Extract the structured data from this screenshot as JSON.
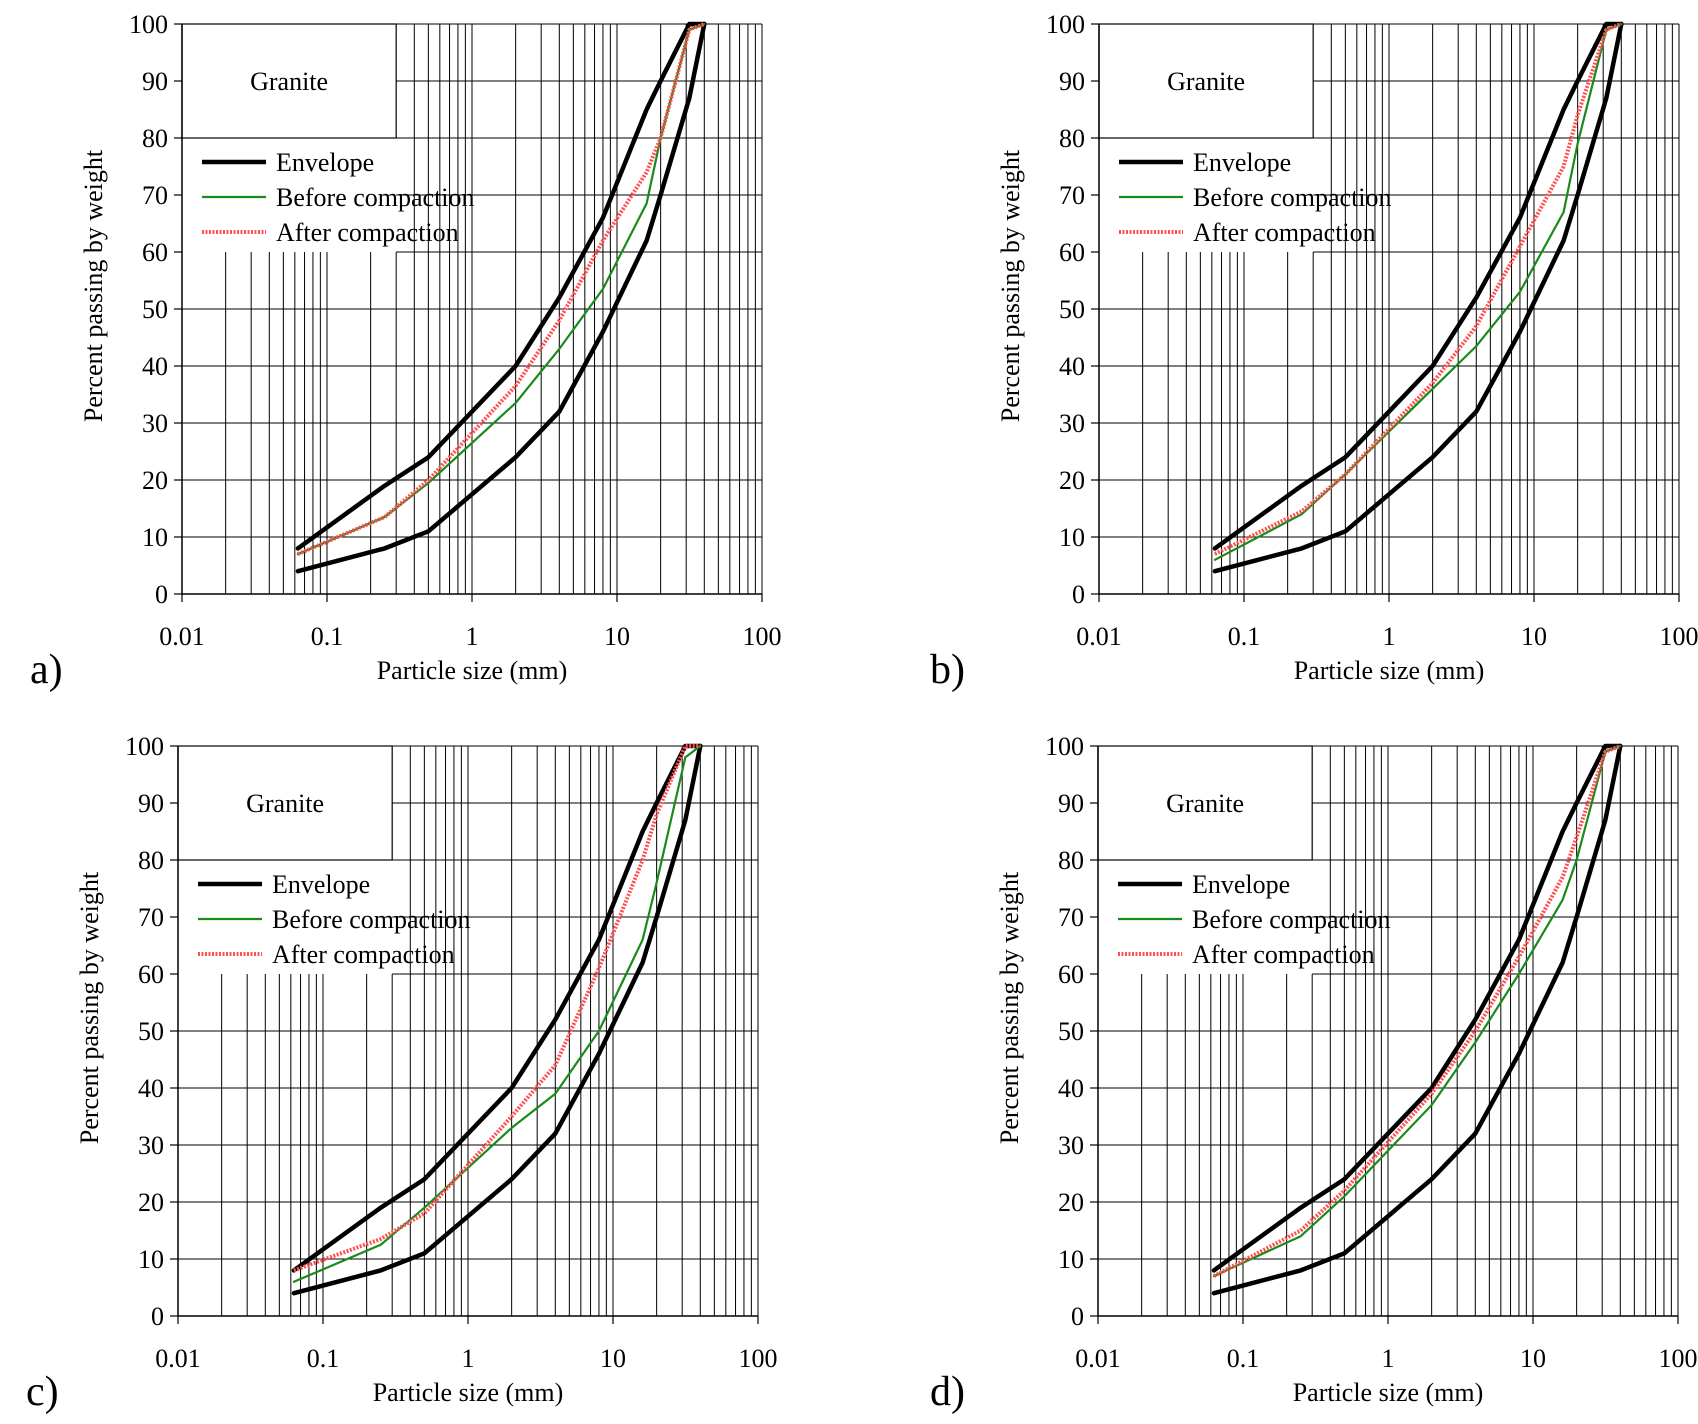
{
  "chart_data": [
    {
      "type": "line",
      "panel_label": "a)",
      "title": "Granite",
      "xlabel": "Particle size (mm)",
      "ylabel": "Percent passing by weight",
      "xscale": "log",
      "xlim": [
        0.01,
        100
      ],
      "ylim": [
        0,
        100
      ],
      "x_ticks": [
        "0.01",
        "0.1",
        "1",
        "10",
        "100"
      ],
      "y_ticks": [
        "0",
        "10",
        "20",
        "30",
        "40",
        "50",
        "60",
        "70",
        "80",
        "90",
        "100"
      ],
      "grid": true,
      "legend_position": "upper-left",
      "legend": [
        "Envelope",
        "Before compaction",
        "After compaction"
      ],
      "series": [
        {
          "name": "Envelope",
          "style": "upper",
          "color": "#000000",
          "x": [
            0.063,
            0.25,
            0.5,
            2,
            4,
            8,
            16,
            20,
            31.5,
            40
          ],
          "y": [
            8,
            19,
            24,
            40,
            52,
            66,
            85,
            90,
            100,
            100
          ]
        },
        {
          "name": "Envelope",
          "style": "lower",
          "color": "#000000",
          "x": [
            0.063,
            0.25,
            0.5,
            2,
            4,
            8,
            16,
            20,
            31.5,
            40
          ],
          "y": [
            4,
            8,
            11,
            24,
            32,
            46,
            62,
            70,
            87,
            100
          ]
        },
        {
          "name": "Before compaction",
          "color": "#1a8a1a",
          "x": [
            0.063,
            0.25,
            0.5,
            2,
            4,
            8,
            16,
            20,
            31.5,
            40
          ],
          "y": [
            7,
            13.5,
            19.5,
            33.5,
            43,
            53.5,
            68.5,
            80,
            99,
            100
          ]
        },
        {
          "name": "After compaction",
          "color": "#ff5050",
          "x": [
            0.063,
            0.25,
            0.5,
            2,
            4,
            8,
            16,
            20,
            31.5,
            40
          ],
          "y": [
            7,
            13.5,
            20,
            36.5,
            48,
            62,
            74,
            80,
            99,
            100
          ]
        }
      ]
    },
    {
      "type": "line",
      "panel_label": "b)",
      "title": "Granite",
      "xlabel": "Particle size (mm)",
      "ylabel": "Percent passing by weight",
      "xscale": "log",
      "xlim": [
        0.01,
        100
      ],
      "ylim": [
        0,
        100
      ],
      "x_ticks": [
        "0.01",
        "0.1",
        "1",
        "10",
        "100"
      ],
      "y_ticks": [
        "0",
        "10",
        "20",
        "30",
        "40",
        "50",
        "60",
        "70",
        "80",
        "90",
        "100"
      ],
      "grid": true,
      "legend_position": "upper-left",
      "legend": [
        "Envelope",
        "Before compaction",
        "After compaction"
      ],
      "series": [
        {
          "name": "Envelope",
          "style": "upper",
          "color": "#000000",
          "x": [
            0.063,
            0.25,
            0.5,
            2,
            4,
            8,
            16,
            20,
            31.5,
            40
          ],
          "y": [
            8,
            19,
            24,
            40,
            52,
            66,
            85,
            90,
            100,
            100
          ]
        },
        {
          "name": "Envelope",
          "style": "lower",
          "color": "#000000",
          "x": [
            0.063,
            0.25,
            0.5,
            2,
            4,
            8,
            16,
            20,
            31.5,
            40
          ],
          "y": [
            4,
            8,
            11,
            24,
            32,
            46,
            62,
            70,
            87,
            100
          ]
        },
        {
          "name": "Before compaction",
          "color": "#1a8a1a",
          "x": [
            0.063,
            0.25,
            0.5,
            2,
            4,
            8,
            16,
            20,
            31.5,
            40
          ],
          "y": [
            6,
            14,
            21,
            36,
            43.5,
            53,
            67,
            79,
            99,
            100
          ]
        },
        {
          "name": "After compaction",
          "color": "#ff5050",
          "x": [
            0.063,
            0.25,
            0.5,
            2,
            4,
            8,
            16,
            20,
            31.5,
            40
          ],
          "y": [
            7,
            14.5,
            21,
            37,
            47,
            61,
            75,
            84,
            99,
            100
          ]
        }
      ]
    },
    {
      "type": "line",
      "panel_label": "c)",
      "title": "Granite",
      "xlabel": "Particle size (mm)",
      "ylabel": "Percent passing by weight",
      "xscale": "log",
      "xlim": [
        0.01,
        100
      ],
      "ylim": [
        0,
        100
      ],
      "x_ticks": [
        "0.01",
        "0.1",
        "1",
        "10",
        "100"
      ],
      "y_ticks": [
        "0",
        "10",
        "20",
        "30",
        "40",
        "50",
        "60",
        "70",
        "80",
        "90",
        "100"
      ],
      "grid": true,
      "legend_position": "upper-left",
      "legend": [
        "Envelope",
        "Before compaction",
        "After compaction"
      ],
      "series": [
        {
          "name": "Envelope",
          "style": "upper",
          "color": "#000000",
          "x": [
            0.063,
            0.25,
            0.5,
            2,
            4,
            8,
            16,
            20,
            31.5,
            40
          ],
          "y": [
            8,
            19,
            24,
            40,
            52,
            66,
            85,
            90,
            100,
            100
          ]
        },
        {
          "name": "Envelope",
          "style": "lower",
          "color": "#000000",
          "x": [
            0.063,
            0.25,
            0.5,
            2,
            4,
            8,
            16,
            20,
            31.5,
            40
          ],
          "y": [
            4,
            8,
            11,
            24,
            32,
            46,
            62,
            70,
            87,
            100
          ]
        },
        {
          "name": "Before compaction",
          "color": "#1a8a1a",
          "x": [
            0.063,
            0.25,
            0.5,
            2,
            4,
            8,
            16,
            20,
            31.5,
            40
          ],
          "y": [
            6,
            12.5,
            19,
            33,
            39,
            50,
            66,
            76,
            98,
            100
          ]
        },
        {
          "name": "After compaction",
          "color": "#ff5050",
          "x": [
            0.063,
            0.25,
            0.5,
            2,
            4,
            8,
            16,
            20,
            31.5,
            40
          ],
          "y": [
            8,
            13.5,
            18,
            35,
            44,
            61,
            80,
            88,
            100,
            100
          ]
        }
      ]
    },
    {
      "type": "line",
      "panel_label": "d)",
      "title": "Granite",
      "xlabel": "Particle size (mm)",
      "ylabel": "Percent passing by weight",
      "xscale": "log",
      "xlim": [
        0.01,
        100
      ],
      "ylim": [
        0,
        100
      ],
      "x_ticks": [
        "0.01",
        "0.1",
        "1",
        "10",
        "100"
      ],
      "y_ticks": [
        "0",
        "10",
        "20",
        "30",
        "40",
        "50",
        "60",
        "70",
        "80",
        "90",
        "100"
      ],
      "grid": true,
      "legend_position": "upper-left",
      "legend": [
        "Envelope",
        "Before compaction",
        "After compaction"
      ],
      "series": [
        {
          "name": "Envelope",
          "style": "upper",
          "color": "#000000",
          "x": [
            0.063,
            0.25,
            0.5,
            2,
            4,
            8,
            16,
            20,
            31.5,
            40
          ],
          "y": [
            8,
            19,
            24,
            40,
            52,
            66,
            85,
            90,
            100,
            100
          ]
        },
        {
          "name": "Envelope",
          "style": "lower",
          "color": "#000000",
          "x": [
            0.063,
            0.25,
            0.5,
            2,
            4,
            8,
            16,
            20,
            31.5,
            40
          ],
          "y": [
            4,
            8,
            11,
            24,
            32,
            46,
            62,
            70,
            87,
            100
          ]
        },
        {
          "name": "Before compaction",
          "color": "#1a8a1a",
          "x": [
            0.063,
            0.25,
            0.5,
            2,
            4,
            8,
            16,
            20,
            31.5,
            40
          ],
          "y": [
            7,
            14,
            21,
            37,
            48,
            60,
            73,
            80,
            99,
            100
          ]
        },
        {
          "name": "After compaction",
          "color": "#ff5050",
          "x": [
            0.063,
            0.25,
            0.5,
            2,
            4,
            8,
            16,
            20,
            31.5,
            40
          ],
          "y": [
            7,
            15,
            22,
            39,
            50,
            63,
            77,
            84,
            99,
            100
          ]
        }
      ]
    }
  ]
}
